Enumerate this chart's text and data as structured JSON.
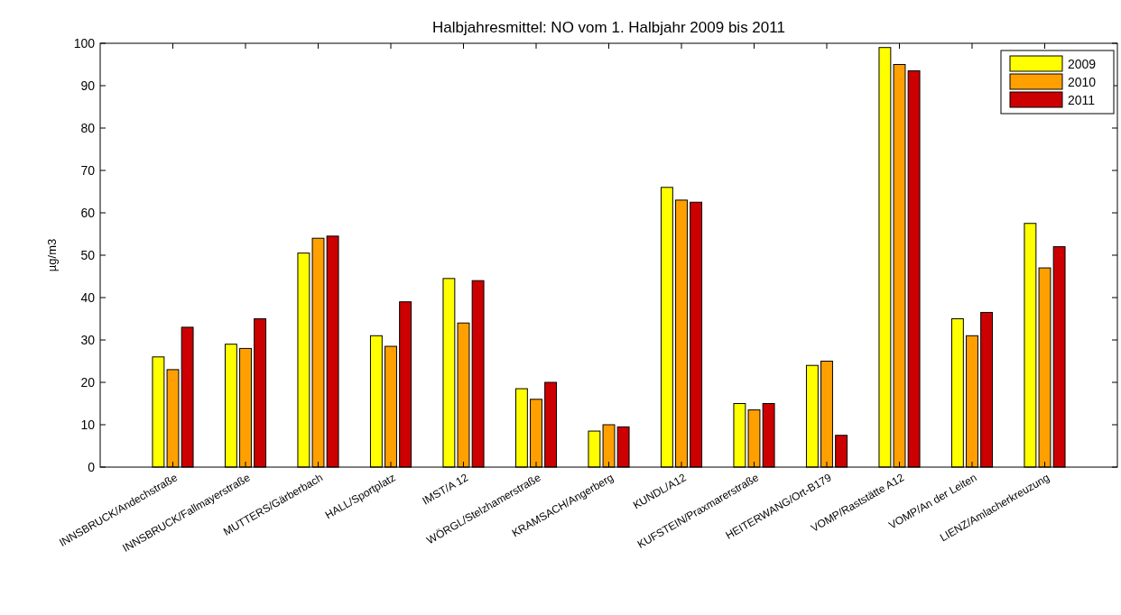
{
  "chart_data": {
    "type": "bar",
    "title": "Halbjahresmittel: NO vom 1. Halbjahr 2009 bis 2011",
    "ylabel": "µg/m3",
    "categories": [
      "INNSBRUCK/Andechstraße",
      "INNSBRUCK/Fallmayerstraße",
      "MUTTERS/Gärberbach",
      "HALL/Sportplatz",
      "IMST/A 12",
      "WÖRGL/Stelzhamerstraße",
      "KRAMSACH/Angerberg",
      "KUNDL/A12",
      "KUFSTEIN/Praxmarerstraße",
      "HEITERWANG/Ort-B179",
      "VOMP/Raststätte A12",
      "VOMP/An der Leiten",
      "LIENZ/Amlacherkreuzung"
    ],
    "series": [
      {
        "name": "2009",
        "color": "#ffff00",
        "values": [
          26,
          29,
          50.5,
          31,
          44.5,
          18.5,
          8.5,
          66,
          15,
          24,
          99,
          35,
          57.5
        ]
      },
      {
        "name": "2010",
        "color": "#ffa000",
        "values": [
          23,
          28,
          54,
          28.5,
          34,
          16,
          10,
          63,
          13.5,
          25,
          95,
          31,
          47
        ]
      },
      {
        "name": "2011",
        "color": "#cc0000",
        "values": [
          33,
          35,
          54.5,
          39,
          44,
          20,
          9.5,
          62.5,
          15,
          7.5,
          93.5,
          36.5,
          52
        ]
      }
    ],
    "ylim": [
      0,
      100
    ],
    "yticks": [
      0,
      10,
      20,
      30,
      40,
      50,
      60,
      70,
      80,
      90,
      100
    ],
    "grid": false,
    "legend": "top right"
  }
}
